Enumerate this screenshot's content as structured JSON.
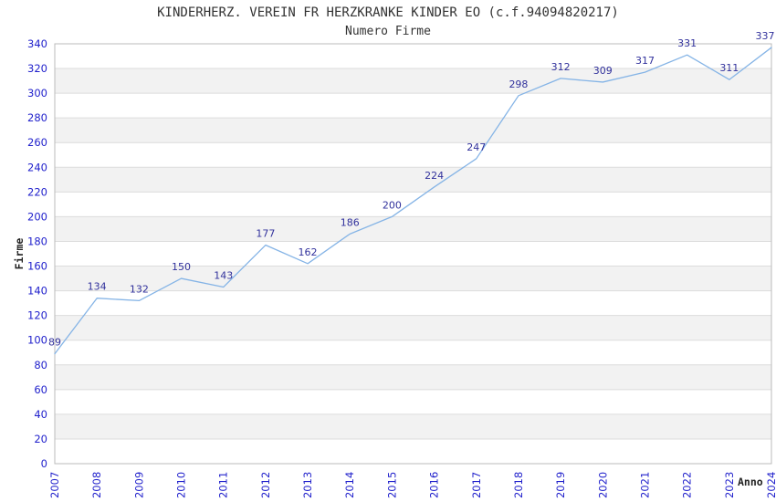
{
  "chart_data": {
    "type": "line",
    "title": "KINDERHERZ. VEREIN FR HERZKRANKE KINDER EO (c.f.94094820217)",
    "subtitle": "Numero Firme",
    "xlabel": "Anno",
    "ylabel": "Firme",
    "categories": [
      "2007",
      "2008",
      "2009",
      "2010",
      "2011",
      "2012",
      "2013",
      "2014",
      "2015",
      "2016",
      "2017",
      "2018",
      "2019",
      "2020",
      "2021",
      "2022",
      "2023",
      "2024"
    ],
    "series": [
      {
        "name": "Numero Firme",
        "values": [
          89,
          134,
          132,
          150,
          143,
          177,
          162,
          186,
          200,
          224,
          247,
          298,
          312,
          309,
          317,
          331,
          311,
          337
        ]
      }
    ],
    "ylim": [
      0,
      340
    ],
    "ytick_step": 20,
    "grid": true,
    "banded_background": true,
    "legend": "none",
    "colors": {
      "line": "#85b4e6",
      "tick_label": "#2222cc",
      "data_label": "#31319c",
      "band": "#f2f2f2",
      "band_alt": "#ffffff",
      "gridline": "#dcdcdc",
      "border": "#bbbbbb",
      "title": "#333333",
      "axis_title": "#222222",
      "background": "#ffffff"
    }
  }
}
